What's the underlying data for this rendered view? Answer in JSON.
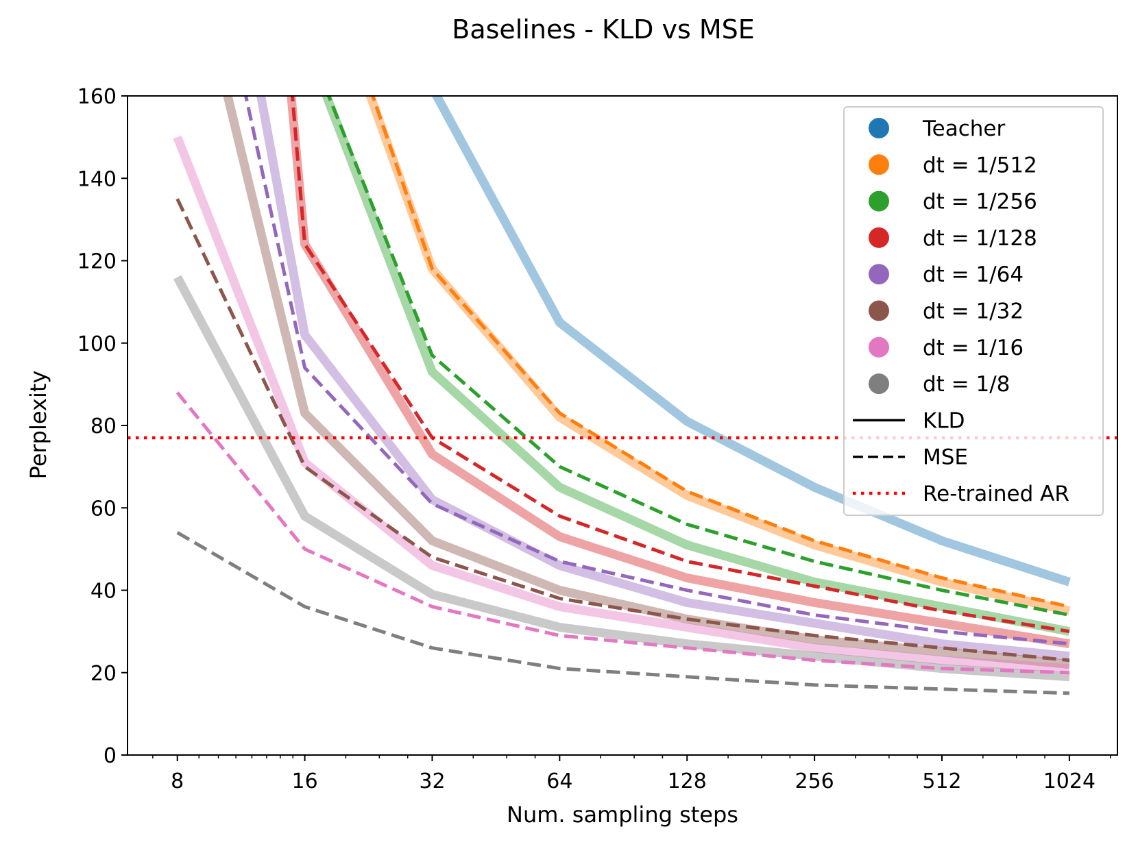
{
  "chart_data": {
    "type": "line",
    "title": "Baselines - KLD vs MSE",
    "xlabel": "Num. sampling steps",
    "ylabel": "Perplexity",
    "xscale": "log2",
    "x": [
      8,
      16,
      32,
      64,
      128,
      256,
      512,
      1024
    ],
    "x_tick_labels": [
      "8",
      "16",
      "32",
      "64",
      "128",
      "256",
      "512",
      "1024"
    ],
    "xlim": [
      6.1,
      1330
    ],
    "ylim": [
      0,
      160
    ],
    "y_ticks": [
      0,
      20,
      40,
      60,
      80,
      100,
      120,
      140,
      160
    ],
    "grid": false,
    "legend_position": "top-right",
    "reference_line": {
      "name": "Re-trained AR",
      "y": 77,
      "color": "#ff0000",
      "style": "dotted"
    },
    "series": [
      {
        "name": "Teacher",
        "color": "#1f77b4",
        "kld": [
          null,
          null,
          null,
          105,
          81,
          65,
          52,
          42
        ],
        "mse": null,
        "kld_extra": {
          "x": 32,
          "y": 162
        }
      },
      {
        "name": "dt = 1/512",
        "color": "#ff7f0e",
        "kld": [
          null,
          null,
          118,
          82,
          63,
          51,
          42,
          35
        ],
        "mse": [
          null,
          null,
          118,
          83,
          64,
          52,
          43,
          36
        ],
        "kld_extra": {
          "x": 22.5,
          "y": 162
        },
        "mse_extra": {
          "x": 22.8,
          "y": 162
        }
      },
      {
        "name": "dt = 1/256",
        "color": "#2ca02c",
        "kld": [
          null,
          null,
          93,
          65,
          51,
          42,
          36,
          30
        ],
        "mse": [
          null,
          null,
          97,
          70,
          56,
          47,
          40,
          34
        ],
        "kld_extra": {
          "x": 17.7,
          "y": 162
        },
        "mse_extra": {
          "x": 17.9,
          "y": 162
        }
      },
      {
        "name": "dt = 1/128",
        "color": "#d62728",
        "kld": [
          null,
          124,
          73,
          53,
          43,
          37,
          32,
          27
        ],
        "mse": [
          null,
          124,
          77,
          58,
          47,
          41,
          35,
          30
        ],
        "kld_extra": {
          "x": 14.8,
          "y": 162
        },
        "mse_extra": {
          "x": 14.9,
          "y": 162
        }
      },
      {
        "name": "dt = 1/64",
        "color": "#9467bd",
        "kld": [
          null,
          102,
          62,
          46,
          37,
          32,
          27,
          24
        ],
        "mse": [
          null,
          94,
          61,
          47,
          40,
          34,
          30,
          27
        ],
        "kld_extra": {
          "x": 12.5,
          "y": 162
        },
        "mse_extra": {
          "x": 11.5,
          "y": 162
        }
      },
      {
        "name": "dt = 1/32",
        "color": "#8c564b",
        "kld": [
          null,
          83,
          52,
          40,
          33,
          28,
          25,
          22
        ],
        "mse": [
          135,
          70,
          48,
          38,
          33,
          29,
          26,
          23
        ],
        "kld_extra": {
          "x": 10.4,
          "y": 162
        },
        "mse_extra": null
      },
      {
        "name": "dt = 1/16",
        "color": "#e377c2",
        "kld": [
          150,
          71,
          46,
          36,
          31,
          26,
          23,
          21
        ],
        "mse": [
          88,
          50,
          36,
          29,
          26,
          23,
          21,
          20
        ],
        "kld_extra": null,
        "mse_extra": null
      },
      {
        "name": "dt = 1/8",
        "color": "#7f7f7f",
        "kld": [
          116,
          58,
          39,
          31,
          27,
          24,
          21,
          19
        ],
        "mse": [
          54,
          36,
          26,
          21,
          19,
          17,
          16,
          15
        ],
        "kld_extra": null,
        "mse_extra": null
      }
    ],
    "legend_entries": [
      {
        "label": "Teacher",
        "marker": "dot",
        "color": "#1f77b4"
      },
      {
        "label": "dt = 1/512",
        "marker": "dot",
        "color": "#ff7f0e"
      },
      {
        "label": "dt = 1/256",
        "marker": "dot",
        "color": "#2ca02c"
      },
      {
        "label": "dt = 1/128",
        "marker": "dot",
        "color": "#d62728"
      },
      {
        "label": "dt = 1/64",
        "marker": "dot",
        "color": "#9467bd"
      },
      {
        "label": "dt = 1/32",
        "marker": "dot",
        "color": "#8c564b"
      },
      {
        "label": "dt = 1/16",
        "marker": "dot",
        "color": "#e377c2"
      },
      {
        "label": "dt = 1/8",
        "marker": "dot",
        "color": "#7f7f7f"
      },
      {
        "label": "KLD",
        "marker": "solid",
        "color": "#000000"
      },
      {
        "label": "MSE",
        "marker": "dashed",
        "color": "#000000"
      },
      {
        "label": "Re-trained AR",
        "marker": "dotted",
        "color": "#ff0000"
      }
    ]
  }
}
